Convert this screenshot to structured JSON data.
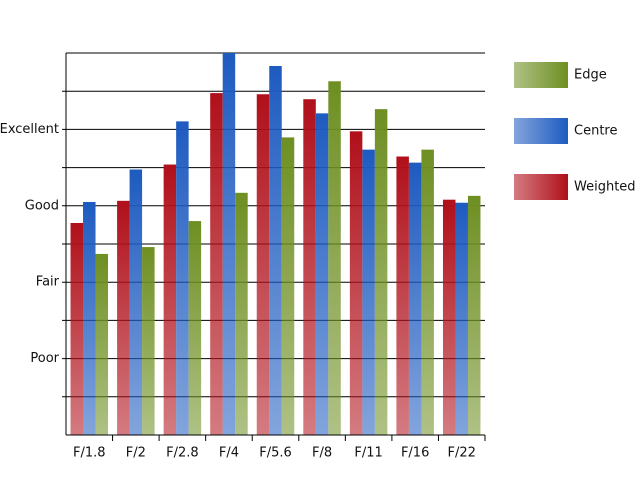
{
  "chart_data": {
    "type": "bar",
    "categories": [
      "F/1.8",
      "F/2",
      "F/2.8",
      "F/4",
      "F/5.6",
      "F/8",
      "F/11",
      "F/16",
      "F/22"
    ],
    "series": [
      {
        "name": "Weighted",
        "color": "#b0101a",
        "values": [
          5.55,
          6.13,
          7.08,
          8.95,
          8.92,
          8.79,
          7.95,
          7.29,
          6.16
        ]
      },
      {
        "name": "Centre",
        "color": "#1e5bc0",
        "values": [
          6.1,
          6.95,
          8.21,
          10.0,
          9.66,
          8.42,
          7.47,
          7.13,
          6.08
        ]
      },
      {
        "name": "Edge",
        "color": "#6e8f22",
        "values": [
          4.74,
          4.92,
          5.6,
          6.34,
          7.79,
          9.26,
          8.53,
          7.47,
          6.26
        ]
      }
    ],
    "ylim": [
      0,
      10
    ],
    "yticks": [
      {
        "value": 2,
        "label": "Poor"
      },
      {
        "value": 4,
        "label": "Fair"
      },
      {
        "value": 6,
        "label": "Good"
      },
      {
        "value": 8,
        "label": "Excellent"
      }
    ],
    "minor_yticks": [
      1,
      3,
      5,
      7,
      9
    ],
    "grid": true
  }
}
